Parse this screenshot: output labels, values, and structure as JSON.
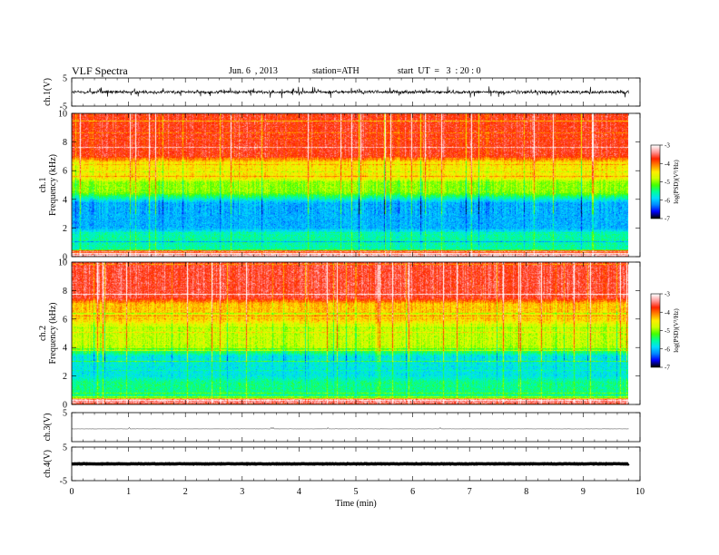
{
  "header": {
    "title": "VLF Spectra",
    "date": "Jun. 6  , 2013",
    "station": "station=ATH",
    "start": "start  UT  =   3  : 20 : 0"
  },
  "chart_data": [
    {
      "type": "line",
      "panel": "ch1-waveform",
      "ylabel": "ch.1(V)",
      "ylim": [
        -5,
        5
      ],
      "yticks": [
        "5",
        "-5"
      ],
      "xlim": [
        0,
        10
      ],
      "note_series": "noisy waveform, amplitude roughly ±1.5 V, extends to 9.8 min"
    },
    {
      "type": "heatmap",
      "panel": "ch1-spectrogram",
      "ylabel": "ch.1\nFrequency  (kHz)",
      "ylim": [
        0,
        10
      ],
      "yticks": [
        "0",
        "2",
        "4",
        "6",
        "8",
        "10"
      ],
      "xlim": [
        0,
        10
      ],
      "data_extent_min": 9.8,
      "colorbar": {
        "label": "log(PSD)(V²/Hz)",
        "range": [
          -7,
          -3
        ],
        "ticks": [
          "-3",
          "-4",
          "-5",
          "-6",
          "-7"
        ]
      },
      "bands_khz": [
        {
          "from": 0,
          "to": 0.5,
          "level": -3.4
        },
        {
          "from": 0.5,
          "to": 2.0,
          "level": -5.6
        },
        {
          "from": 2.0,
          "to": 4.5,
          "level": -6.1
        },
        {
          "from": 4.5,
          "to": 5.5,
          "level": -5.0
        },
        {
          "from": 5.5,
          "to": 7.0,
          "level": -4.5
        },
        {
          "from": 7.0,
          "to": 10,
          "level": -3.7
        }
      ]
    },
    {
      "type": "heatmap",
      "panel": "ch2-spectrogram",
      "ylabel": "ch.2\nFrequency  (kHz)",
      "ylim": [
        0,
        10
      ],
      "yticks": [
        "0",
        "2",
        "4",
        "6",
        "8",
        "10"
      ],
      "xlim": [
        0,
        10
      ],
      "data_extent_min": 9.8,
      "colorbar": {
        "label": "log(PSD)(V²/Hz)",
        "range": [
          -7,
          -3
        ],
        "ticks": [
          "-3",
          "-4",
          "-5",
          "-6",
          "-7"
        ]
      },
      "bands_khz": [
        {
          "from": 0,
          "to": 0.5,
          "level": -3.4
        },
        {
          "from": 0.5,
          "to": 2.0,
          "level": -5.5
        },
        {
          "from": 2.0,
          "to": 4.0,
          "level": -5.8
        },
        {
          "from": 4.0,
          "to": 6.0,
          "level": -4.8
        },
        {
          "from": 6.0,
          "to": 7.5,
          "level": -4.3
        },
        {
          "from": 7.5,
          "to": 10,
          "level": -3.6
        }
      ]
    },
    {
      "type": "line",
      "panel": "ch3-waveform",
      "ylabel": "ch.3(V)",
      "ylim": [
        -5,
        5
      ],
      "yticks": [
        "5"
      ],
      "xlim": [
        0,
        10
      ],
      "note_series": "nearly flat trace slightly below 0 V"
    },
    {
      "type": "line",
      "panel": "ch4-waveform",
      "ylabel": "ch.4(V)",
      "ylim": [
        -5,
        5
      ],
      "yticks": [
        "5",
        "-5"
      ],
      "xlim": [
        0,
        10
      ],
      "xlabel": "Time  (min)",
      "xticks": [
        "0",
        "1",
        "2",
        "3",
        "4",
        "5",
        "6",
        "7",
        "8",
        "9",
        "10"
      ],
      "note_series": "thick flat trace near 0 V"
    }
  ],
  "colors": {
    "scale": [
      "#000000",
      "#0000ff",
      "#0088ff",
      "#00ddff",
      "#00ff99",
      "#44ff00",
      "#ccff00",
      "#ffee00",
      "#ff8800",
      "#ff2200",
      "#ff9999",
      "#ffffff"
    ]
  }
}
